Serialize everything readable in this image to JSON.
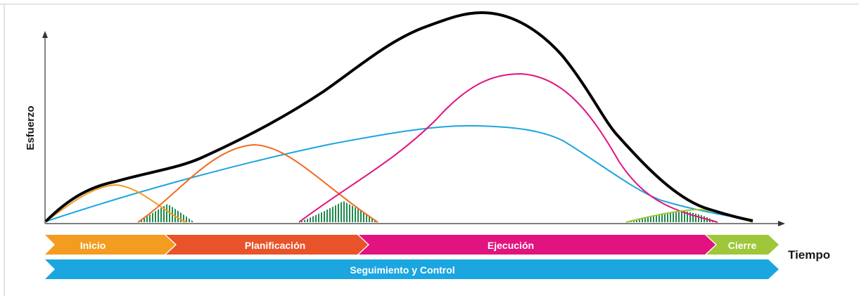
{
  "axes": {
    "y_label": "Esfuerzo",
    "x_label": "Tiempo"
  },
  "phases": [
    {
      "key": "inicio",
      "label": "Inicio",
      "color": "#f39c1f"
    },
    {
      "key": "planificacion",
      "label": "Planificación",
      "color": "#e8532a"
    },
    {
      "key": "ejecucion",
      "label": "Ejecución",
      "color": "#e2137e"
    },
    {
      "key": "cierre",
      "label": "Cierre",
      "color": "#9ec73a"
    }
  ],
  "control_phase": {
    "key": "seguimiento",
    "label": "Seguimiento y Control",
    "color": "#1ba6df"
  },
  "curve_colors": {
    "total": "#000000",
    "inicio": "#f39c1f",
    "planificacion": "#f26a22",
    "ejecucion": "#e2137e",
    "seguimiento": "#1ba6df",
    "cierre": "#9ec73a",
    "overlap_hatch": "#1f8a4c"
  }
}
